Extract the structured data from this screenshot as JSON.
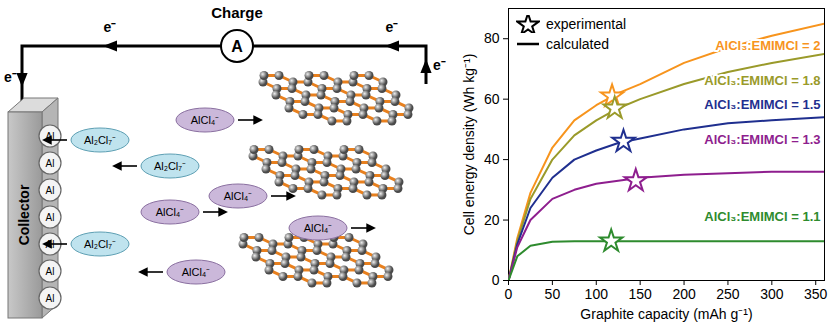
{
  "diagram": {
    "title": "Charge",
    "ammeter": "A",
    "electron_labels": [
      "e⁻",
      "e⁻",
      "e⁻",
      "e⁻"
    ],
    "collector": "Collector",
    "collector_atoms": [
      "Al",
      "Al",
      "Al",
      "Al",
      "Al",
      "Al",
      "Al"
    ],
    "ions": [
      {
        "label": "Al₂Cl₇⁻",
        "direction": "left"
      },
      {
        "label": "Al₂Cl₇⁻",
        "direction": "left"
      },
      {
        "label": "Al₂Cl₇⁻",
        "direction": "left"
      },
      {
        "label": "AlCl₄⁻",
        "direction": "right"
      },
      {
        "label": "AlCl₄⁻",
        "direction": "right"
      },
      {
        "label": "AlCl₄⁻",
        "direction": "right"
      },
      {
        "label": "AlCl₄⁻",
        "direction": "left"
      },
      {
        "label": "AlCl₄⁻",
        "direction": "right"
      }
    ]
  },
  "chart_data": {
    "type": "line",
    "x_label": "Graphite capacity (mAh g⁻¹)",
    "y_label": "Cell energy density (Wh kg⁻¹)",
    "x": [
      0,
      10,
      25,
      50,
      75,
      100,
      125,
      150,
      200,
      250,
      300,
      360
    ],
    "xlim": [
      0,
      360
    ],
    "xticks": [
      0,
      50,
      100,
      150,
      200,
      250,
      300,
      350
    ],
    "ylim": [
      0,
      90
    ],
    "yticks": [
      0,
      20,
      40,
      60,
      80
    ],
    "legend": "top-left",
    "legend_entries": [
      {
        "name": "experimental",
        "type": "scatter",
        "marker": "star"
      },
      {
        "name": "calculated",
        "type": "line",
        "line_style": "solid"
      }
    ],
    "series": [
      {
        "name": "AlCl₃:EMIMCl = 2",
        "color": "#f7941d",
        "values": [
          0,
          14,
          29,
          44,
          53,
          58,
          62,
          65,
          72,
          77,
          81,
          85
        ],
        "experimental": {
          "x": 118,
          "y": 61
        }
      },
      {
        "name": "AlCl₃:EMIMCl = 1.8",
        "color": "#9a9a2a",
        "values": [
          0,
          13,
          27,
          40,
          48,
          53,
          57,
          60,
          65,
          69,
          72,
          75
        ],
        "experimental": {
          "x": 121,
          "y": 57
        }
      },
      {
        "name": "AlCl₃:EMIMCl = 1.5",
        "color": "#1f2f8f",
        "values": [
          0,
          12,
          24,
          34,
          40,
          43,
          45.5,
          47,
          50,
          52,
          53,
          54
        ],
        "experimental": {
          "x": 131,
          "y": 46
        }
      },
      {
        "name": "AlCl₃:EMIMCl = 1.3",
        "color": "#8e1e8e",
        "values": [
          0,
          11,
          20,
          27,
          30,
          32,
          33,
          34,
          35,
          35.5,
          36,
          36
        ],
        "experimental": {
          "x": 145,
          "y": 33
        }
      },
      {
        "name": "AlCl₃:EMIMCl = 1.1",
        "color": "#2e8b2e",
        "values": [
          0,
          8,
          11.5,
          12.8,
          13,
          13,
          13,
          13,
          13,
          13,
          13,
          13
        ],
        "experimental": {
          "x": 117,
          "y": 13
        }
      }
    ]
  }
}
